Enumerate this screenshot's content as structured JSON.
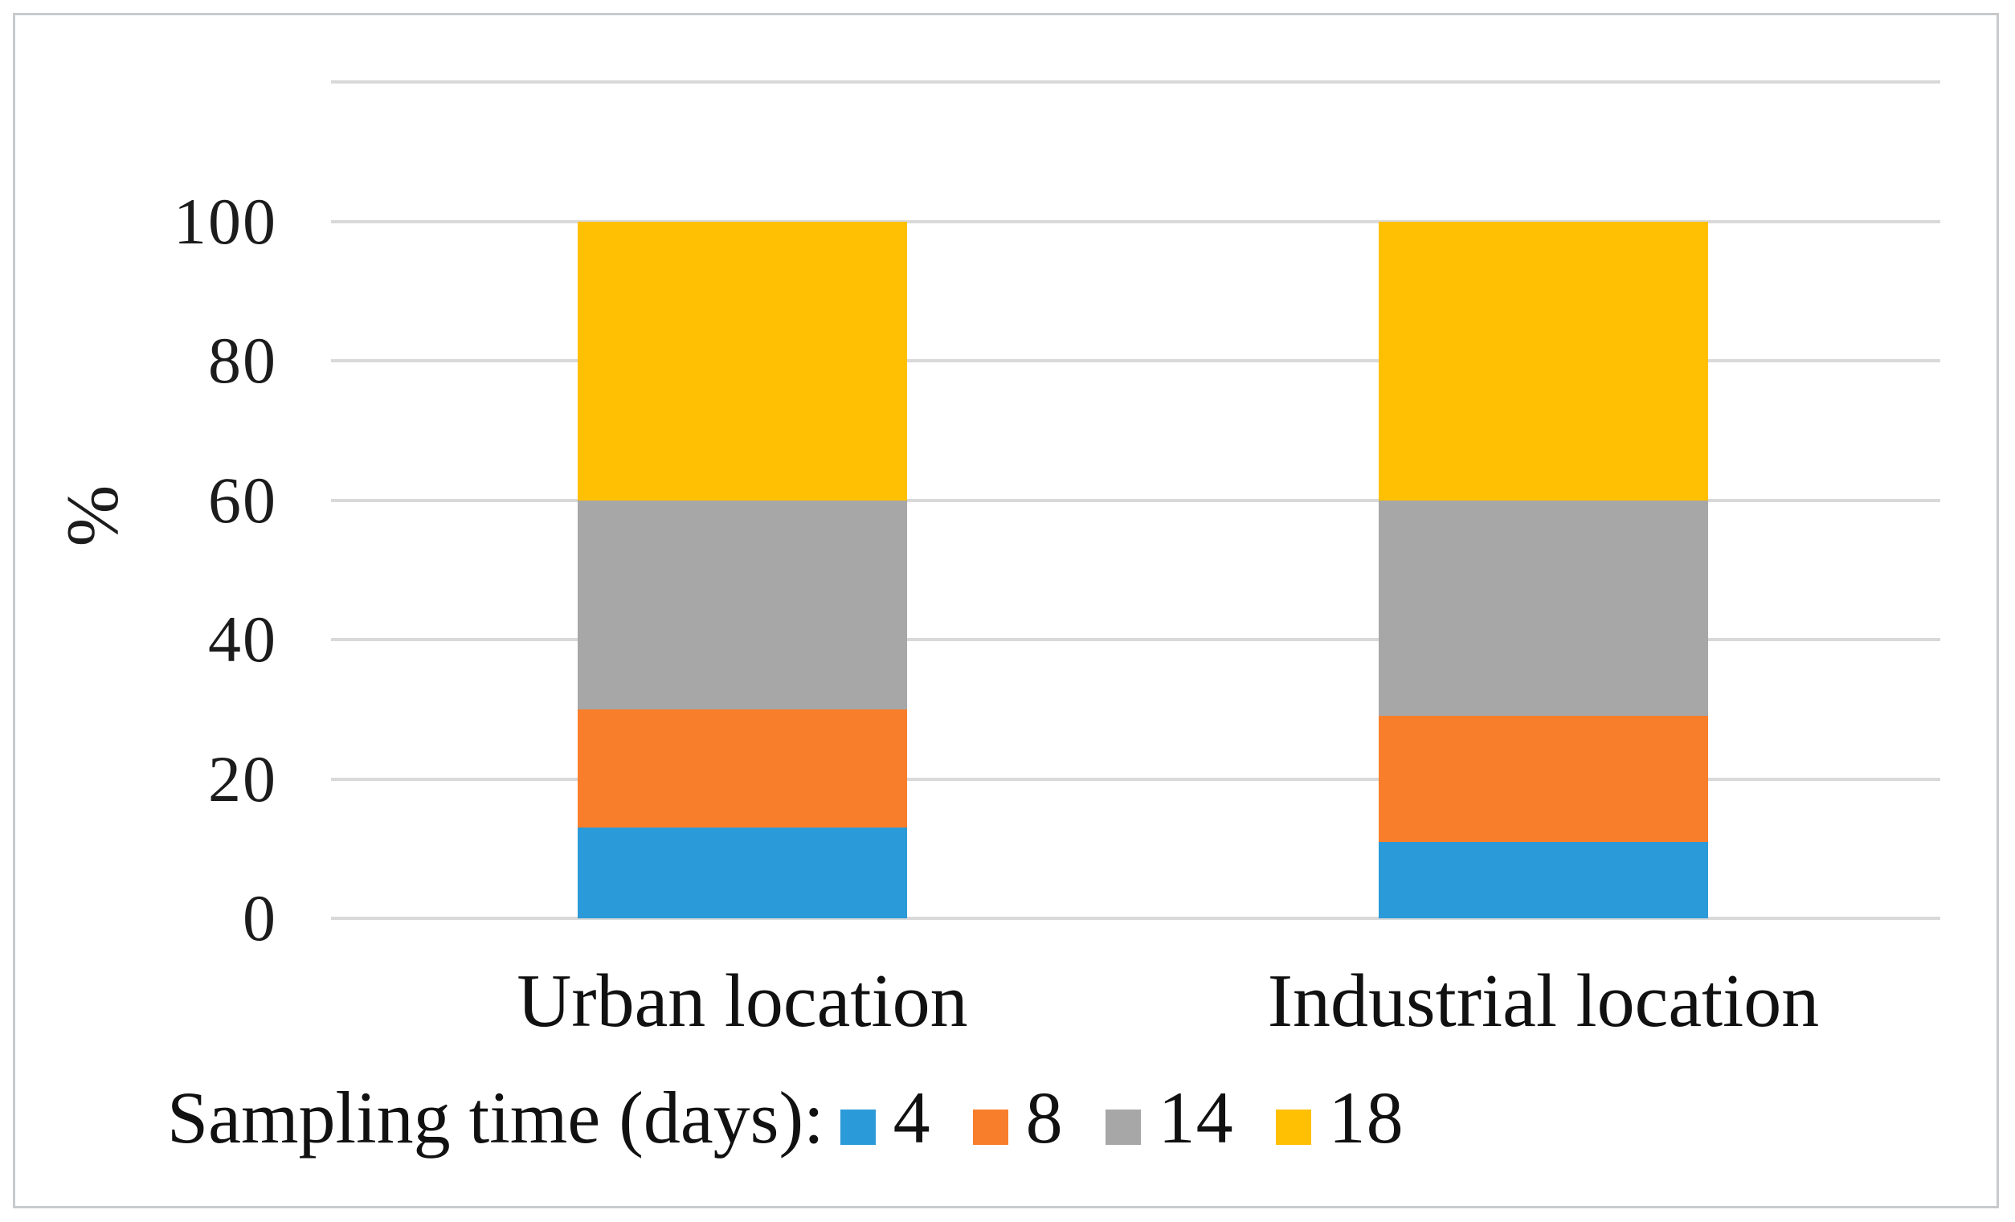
{
  "figure": {
    "border_color": "#c8cacc",
    "background": "#ffffff",
    "text_color": "#1a1a1a"
  },
  "chart_data": {
    "type": "bar",
    "stacked": true,
    "title": "",
    "categories": [
      "Urban location",
      "Industrial location"
    ],
    "series": [
      {
        "name": "4",
        "color": "#2a9ad8",
        "values": [
          13,
          11
        ]
      },
      {
        "name": "8",
        "color": "#f87e2b",
        "values": [
          17,
          18
        ]
      },
      {
        "name": "14",
        "color": "#a7a7a7",
        "values": [
          30,
          31
        ]
      },
      {
        "name": "18",
        "color": "#ffc003",
        "values": [
          40,
          40
        ]
      }
    ],
    "ylabel": "%",
    "ylim": [
      0,
      120
    ],
    "yticks": [
      0,
      20,
      40,
      60,
      80,
      100
    ],
    "top_gridline": 120,
    "grid": true,
    "gridline_color": "#d9d9d9",
    "legend_title": "Sampling time (days):",
    "legend_position": "bottom-left"
  }
}
